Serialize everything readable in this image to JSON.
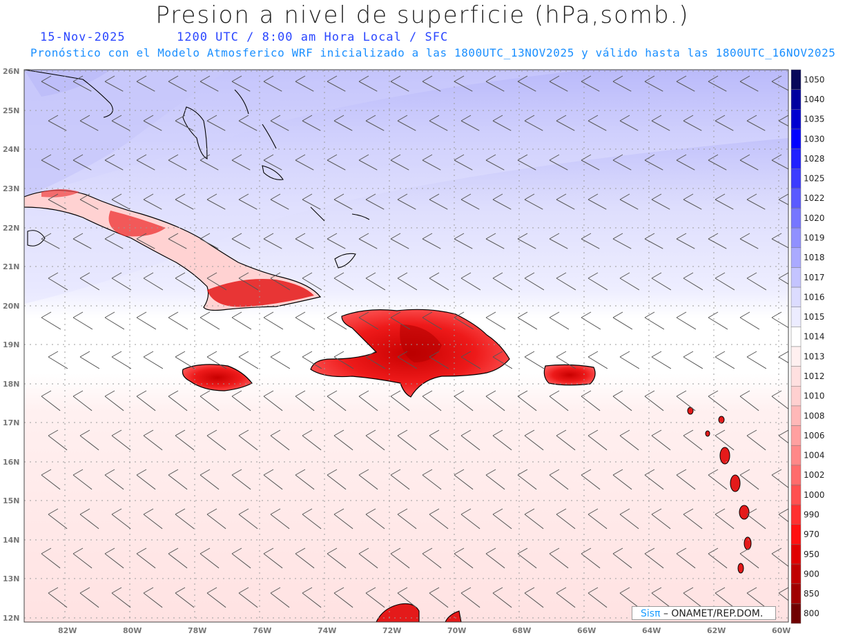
{
  "header": {
    "title": "Presion a nivel de superficie (hPa,somb.)",
    "date": "15-Nov-2025",
    "valid_time": "1200 UTC / 8:00 am Hora Local / SFC",
    "model_info": "Pronóstico con el Modelo Atmosferico WRF inicializado a las 1800UTC_13NOV2025 y válido hasta las  1800UTC_16NOV2025"
  },
  "map": {
    "lat_labels": [
      "26N",
      "25N",
      "24N",
      "23N",
      "22N",
      "21N",
      "20N",
      "19N",
      "18N",
      "17N",
      "16N",
      "15N",
      "14N",
      "13N",
      "12N"
    ],
    "lon_labels": [
      "82W",
      "80W",
      "78W",
      "76W",
      "74W",
      "72W",
      "70W",
      "68W",
      "66W",
      "64W",
      "62W",
      "60W"
    ],
    "field": "surface pressure shading (hPa)",
    "overlay": "wind barbs"
  },
  "colorbar": {
    "levels": [
      "1050",
      "1040",
      "1035",
      "1030",
      "1028",
      "1025",
      "1022",
      "1020",
      "1019",
      "1018",
      "1017",
      "1016",
      "1015",
      "1014",
      "1013",
      "1012",
      "1010",
      "1008",
      "1006",
      "1004",
      "1002",
      "1000",
      "990",
      "970",
      "950",
      "900",
      "850",
      "800"
    ],
    "colors": [
      "#08085a",
      "#0000a0",
      "#0000d0",
      "#0000ff",
      "#2020ff",
      "#3c3cff",
      "#5a5aff",
      "#7676ff",
      "#9090ff",
      "#aaaaff",
      "#c4c4ff",
      "#dcdcff",
      "#ececff",
      "#ffffff",
      "#fff0f0",
      "#ffe0e0",
      "#ffd0d0",
      "#ffb8b8",
      "#ffa0a0",
      "#ff8888",
      "#ff6c6c",
      "#ff5050",
      "#ff3030",
      "#ff1010",
      "#e00000",
      "#c00000",
      "#a00000",
      "#700000"
    ]
  },
  "credit": {
    "brand": "Sisπ",
    "text": "– ONAMET/REP.DOM."
  }
}
